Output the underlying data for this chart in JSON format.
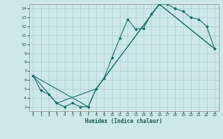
{
  "xlabel": "Humidex (Indice chaleur)",
  "bg_color": "#cce8ea",
  "grid_color": "#aacccc",
  "line_color": "#1e6b6b",
  "xlim": [
    -0.5,
    23.5
  ],
  "ylim": [
    2.5,
    14.5
  ],
  "xticks": [
    0,
    1,
    2,
    3,
    4,
    5,
    6,
    7,
    8,
    9,
    10,
    11,
    12,
    13,
    14,
    15,
    16,
    17,
    18,
    19,
    20,
    21,
    22,
    23
  ],
  "yticks": [
    3,
    4,
    5,
    6,
    7,
    8,
    9,
    10,
    11,
    12,
    13,
    14
  ],
  "curve1_x": [
    0,
    1,
    2,
    3,
    4,
    5,
    6,
    7,
    8,
    9,
    10,
    11,
    12,
    13,
    14,
    15,
    16,
    17,
    18,
    19,
    20,
    21,
    22,
    23
  ],
  "curve1_y": [
    6.5,
    4.8,
    4.4,
    3.4,
    3.0,
    3.4,
    3.0,
    3.0,
    5.0,
    6.2,
    8.5,
    10.7,
    12.8,
    11.7,
    11.8,
    13.4,
    14.5,
    14.5,
    14.0,
    13.7,
    13.0,
    12.8,
    12.0,
    9.5
  ],
  "curve2_x": [
    0,
    3,
    8,
    16,
    23
  ],
  "curve2_y": [
    6.5,
    3.4,
    5.0,
    14.5,
    9.5
  ],
  "curve3_x": [
    0,
    7,
    8,
    16,
    23
  ],
  "curve3_y": [
    6.5,
    3.0,
    5.0,
    14.5,
    9.5
  ]
}
